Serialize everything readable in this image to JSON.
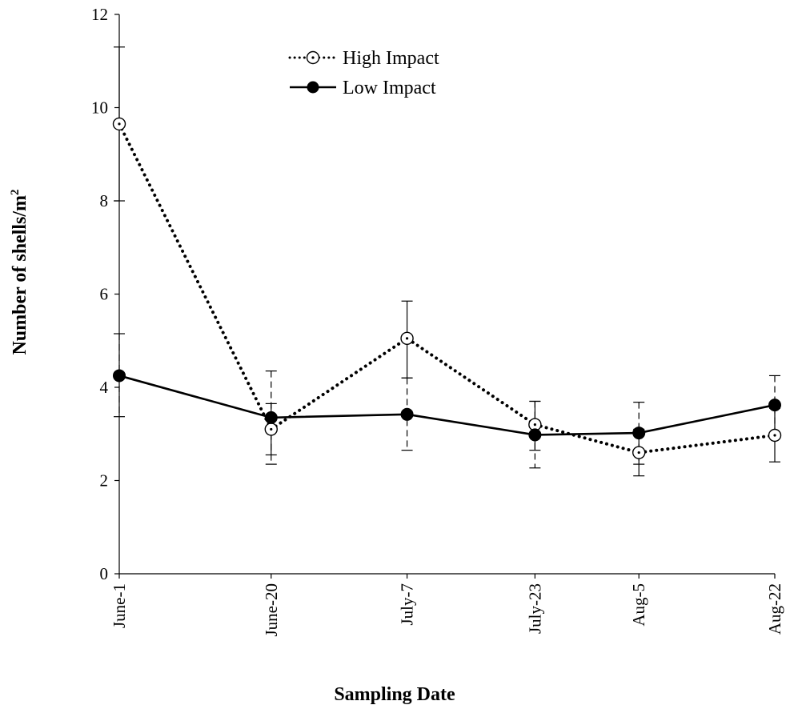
{
  "chart_data": {
    "type": "line",
    "xlabel": "Sampling Date",
    "ylabel": "Number of shells/m",
    "ylabel_superscript": "2",
    "ylim": [
      0,
      12
    ],
    "yticks": [
      0,
      2,
      4,
      6,
      8,
      10,
      12
    ],
    "x_values": [
      0,
      19,
      36,
      52,
      65,
      82
    ],
    "categories": [
      "June-1",
      "June-20",
      "July-7",
      "July-23",
      "Aug-5",
      "Aug-22"
    ],
    "legend_position": "top-center",
    "grid": false,
    "series": [
      {
        "name": "High Impact",
        "style": "dotted",
        "marker": "open-circle-dot",
        "values": [
          9.65,
          3.1,
          5.05,
          3.2,
          2.6,
          2.97
        ],
        "error_low": [
          8.0,
          2.55,
          4.2,
          2.65,
          2.1,
          2.4
        ],
        "error_high": [
          11.3,
          3.65,
          5.85,
          3.7,
          3.1,
          3.55
        ]
      },
      {
        "name": "Low Impact",
        "style": "solid",
        "marker": "filled-circle",
        "values": [
          4.25,
          3.35,
          3.42,
          2.98,
          3.02,
          3.62
        ],
        "error_low": [
          3.37,
          2.35,
          2.65,
          2.27,
          2.35,
          2.98
        ],
        "error_high": [
          5.15,
          4.35,
          4.2,
          3.7,
          3.68,
          4.25
        ]
      }
    ]
  }
}
